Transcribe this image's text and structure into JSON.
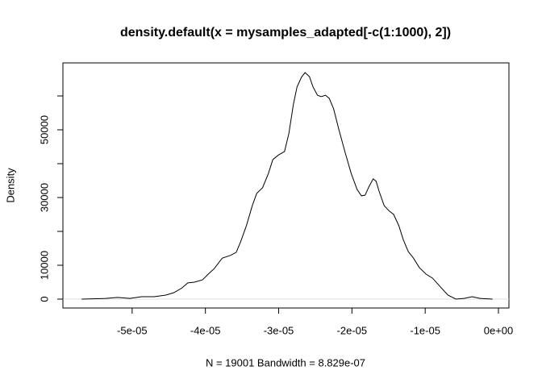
{
  "chart_data": {
    "type": "line",
    "title": "density.default(x = mysamples_adapted[-c(1:1000), 2])",
    "x_label": "N = 19001   Bandwidth = 8.829e-07",
    "y_label": "Density",
    "x": [
      -5.69e-05,
      -5.36e-05,
      -5.2e-05,
      -5.03e-05,
      -4.87e-05,
      -4.7e-05,
      -4.54e-05,
      -4.43e-05,
      -4.32e-05,
      -4.24e-05,
      -4.15e-05,
      -4.04e-05,
      -3.96e-05,
      -3.88e-05,
      -3.77e-05,
      -3.66e-05,
      -3.58e-05,
      -3.52e-05,
      -3.44e-05,
      -3.36e-05,
      -3.3e-05,
      -3.22e-05,
      -3.14e-05,
      -3.08e-05,
      -3e-05,
      -2.92e-05,
      -2.86e-05,
      -2.8e-05,
      -2.75e-05,
      -2.69e-05,
      -2.64e-05,
      -2.58e-05,
      -2.53e-05,
      -2.47e-05,
      -2.42e-05,
      -2.36e-05,
      -2.31e-05,
      -2.25e-05,
      -2.18e-05,
      -2.09e-05,
      -2.01e-05,
      -1.93e-05,
      -1.87e-05,
      -1.82e-05,
      -1.77e-05,
      -1.71e-05,
      -1.67e-05,
      -1.63e-05,
      -1.56e-05,
      -1.49e-05,
      -1.43e-05,
      -1.36e-05,
      -1.3e-05,
      -1.23e-05,
      -1.16e-05,
      -1.08e-05,
      -9.9e-06,
      -9e-06,
      -8e-06,
      -6.9e-06,
      -5.8e-06,
      -4.7e-06,
      -3.6e-06,
      -2.5e-06,
      -8e-07
    ],
    "series": [
      {
        "color": "#000000",
        "values": [
          0,
          200,
          500,
          200,
          700,
          700,
          1200,
          1900,
          3300,
          4800,
          5000,
          5700,
          7400,
          9000,
          12100,
          12900,
          13800,
          16900,
          21700,
          27600,
          31200,
          32900,
          37100,
          41200,
          42600,
          43600,
          49000,
          57400,
          62600,
          65500,
          66900,
          65700,
          62600,
          60200,
          59800,
          60200,
          59300,
          56200,
          50200,
          43100,
          37100,
          32400,
          30500,
          30700,
          33100,
          35500,
          34800,
          31900,
          27600,
          26000,
          25000,
          21700,
          17600,
          14000,
          12100,
          9300,
          7400,
          6200,
          3800,
          1200,
          0,
          200,
          700,
          200,
          0
        ]
      }
    ],
    "xlim": [
      -5.945e-05,
      1.43e-06
    ],
    "ylim": [
      -2620,
      69760
    ],
    "xticks": [
      {
        "value": -5e-05,
        "label": "-5e-05"
      },
      {
        "value": -4e-05,
        "label": "-4e-05"
      },
      {
        "value": -3e-05,
        "label": "-3e-05"
      },
      {
        "value": -2e-05,
        "label": "-2e-05"
      },
      {
        "value": -1e-05,
        "label": "-1e-05"
      },
      {
        "value": 0,
        "label": "0e+00"
      }
    ],
    "yticks": [
      0,
      10000,
      30000,
      50000
    ],
    "yminor_ticks": [
      20000,
      40000,
      60000
    ],
    "zero_line_color": "#dddddd"
  }
}
